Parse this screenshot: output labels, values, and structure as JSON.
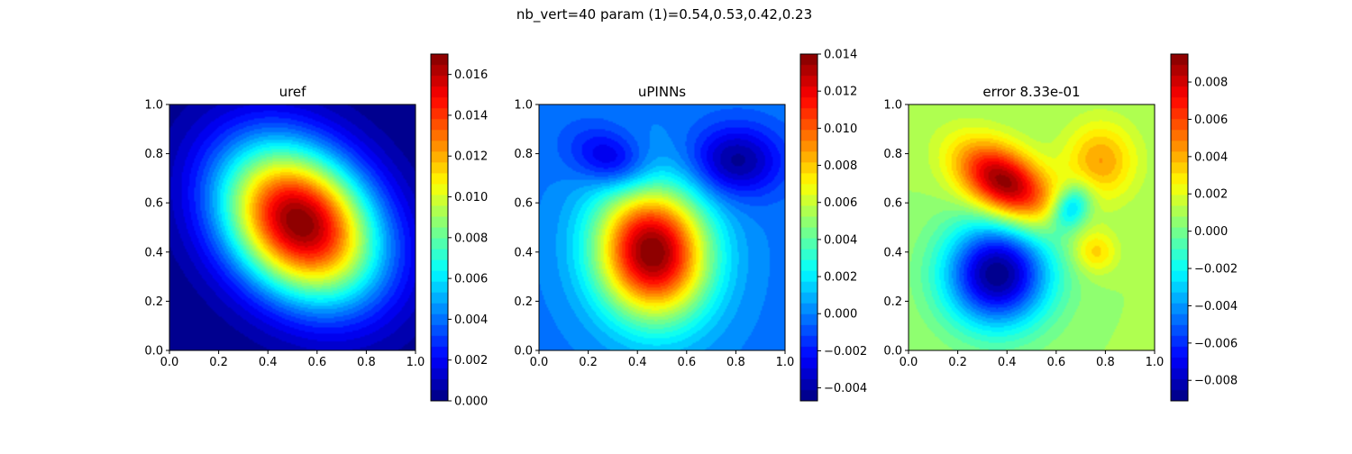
{
  "figure": {
    "suptitle": "nb_vert=40 param (1)=0.54,0.53,0.42,0.23"
  },
  "chart_data": [
    {
      "type": "heatmap",
      "title": "uref",
      "xlim": [
        0,
        1
      ],
      "ylim": [
        0,
        1
      ],
      "xticks": [
        "0.0",
        "0.2",
        "0.4",
        "0.6",
        "0.8",
        "1.0"
      ],
      "yticks": [
        "0.0",
        "0.2",
        "0.4",
        "0.6",
        "0.8",
        "1.0"
      ],
      "colormap": "jet",
      "colorbar": {
        "range": [
          0.0,
          0.017
        ],
        "ticks": [
          0.0,
          0.002,
          0.004,
          0.006,
          0.008,
          0.01,
          0.012,
          0.014,
          0.016
        ],
        "tick_labels": [
          "0.000",
          "0.002",
          "0.004",
          "0.006",
          "0.008",
          "0.010",
          "0.012",
          "0.014",
          "0.016"
        ]
      },
      "field": {
        "background": 0.0,
        "blobs": [
          {
            "cx": 0.53,
            "cy": 0.52,
            "sx": 0.25,
            "sy": 0.19,
            "rot_deg": -45,
            "amp": 0.017
          }
        ]
      }
    },
    {
      "type": "heatmap",
      "title": "uPINNs",
      "xlim": [
        0,
        1
      ],
      "ylim": [
        0,
        1
      ],
      "xticks": [
        "0.0",
        "0.2",
        "0.4",
        "0.6",
        "0.8",
        "1.0"
      ],
      "yticks": [
        "0.0",
        "0.2",
        "0.4",
        "0.6",
        "0.8",
        "1.0"
      ],
      "colormap": "jet",
      "colorbar": {
        "range": [
          -0.0047,
          0.014
        ],
        "ticks": [
          -0.004,
          -0.002,
          0.0,
          0.002,
          0.004,
          0.006,
          0.008,
          0.01,
          0.012,
          0.014
        ],
        "tick_labels": [
          "−0.004",
          "−0.002",
          "0.000",
          "0.002",
          "0.004",
          "0.006",
          "0.008",
          "0.010",
          "0.012",
          "0.014"
        ]
      },
      "field": {
        "background": -0.0002,
        "blobs": [
          {
            "cx": 0.46,
            "cy": 0.4,
            "sx": 0.16,
            "sy": 0.19,
            "rot_deg": 10,
            "amp": 0.0143
          },
          {
            "cx": 0.8,
            "cy": 0.77,
            "sx": 0.13,
            "sy": 0.1,
            "rot_deg": 0,
            "amp": -0.0042
          },
          {
            "cx": 0.3,
            "cy": 0.77,
            "sx": 0.12,
            "sy": 0.08,
            "rot_deg": -25,
            "amp": -0.0036
          }
        ]
      }
    },
    {
      "type": "heatmap",
      "title": "error 8.33e-01",
      "xlim": [
        0,
        1
      ],
      "ylim": [
        0,
        1
      ],
      "xticks": [
        "0.0",
        "0.2",
        "0.4",
        "0.6",
        "0.8",
        "1.0"
      ],
      "yticks": [
        "0.0",
        "0.2",
        "0.4",
        "0.6",
        "0.8",
        "1.0"
      ],
      "colormap": "jet",
      "colorbar": {
        "range": [
          -0.0091,
          0.0095
        ],
        "ticks": [
          -0.008,
          -0.006,
          -0.004,
          -0.002,
          0.0,
          0.002,
          0.004,
          0.006,
          0.008
        ],
        "tick_labels": [
          "−0.008",
          "−0.006",
          "−0.004",
          "−0.002",
          "0.000",
          "0.002",
          "0.004",
          "0.006",
          "0.008"
        ]
      },
      "field": {
        "background": 0.0008,
        "blobs": [
          {
            "cx": 0.39,
            "cy": 0.68,
            "sx": 0.15,
            "sy": 0.09,
            "rot_deg": -35,
            "amp": 0.0088
          },
          {
            "cx": 0.36,
            "cy": 0.31,
            "sx": 0.15,
            "sy": 0.15,
            "rot_deg": 0,
            "amp": -0.0098
          },
          {
            "cx": 0.78,
            "cy": 0.77,
            "sx": 0.1,
            "sy": 0.11,
            "rot_deg": 0,
            "amp": 0.0035
          },
          {
            "cx": 0.66,
            "cy": 0.58,
            "sx": 0.05,
            "sy": 0.07,
            "rot_deg": -30,
            "amp": -0.0045
          },
          {
            "cx": 0.76,
            "cy": 0.4,
            "sx": 0.06,
            "sy": 0.06,
            "rot_deg": 0,
            "amp": 0.0026
          }
        ]
      }
    }
  ]
}
